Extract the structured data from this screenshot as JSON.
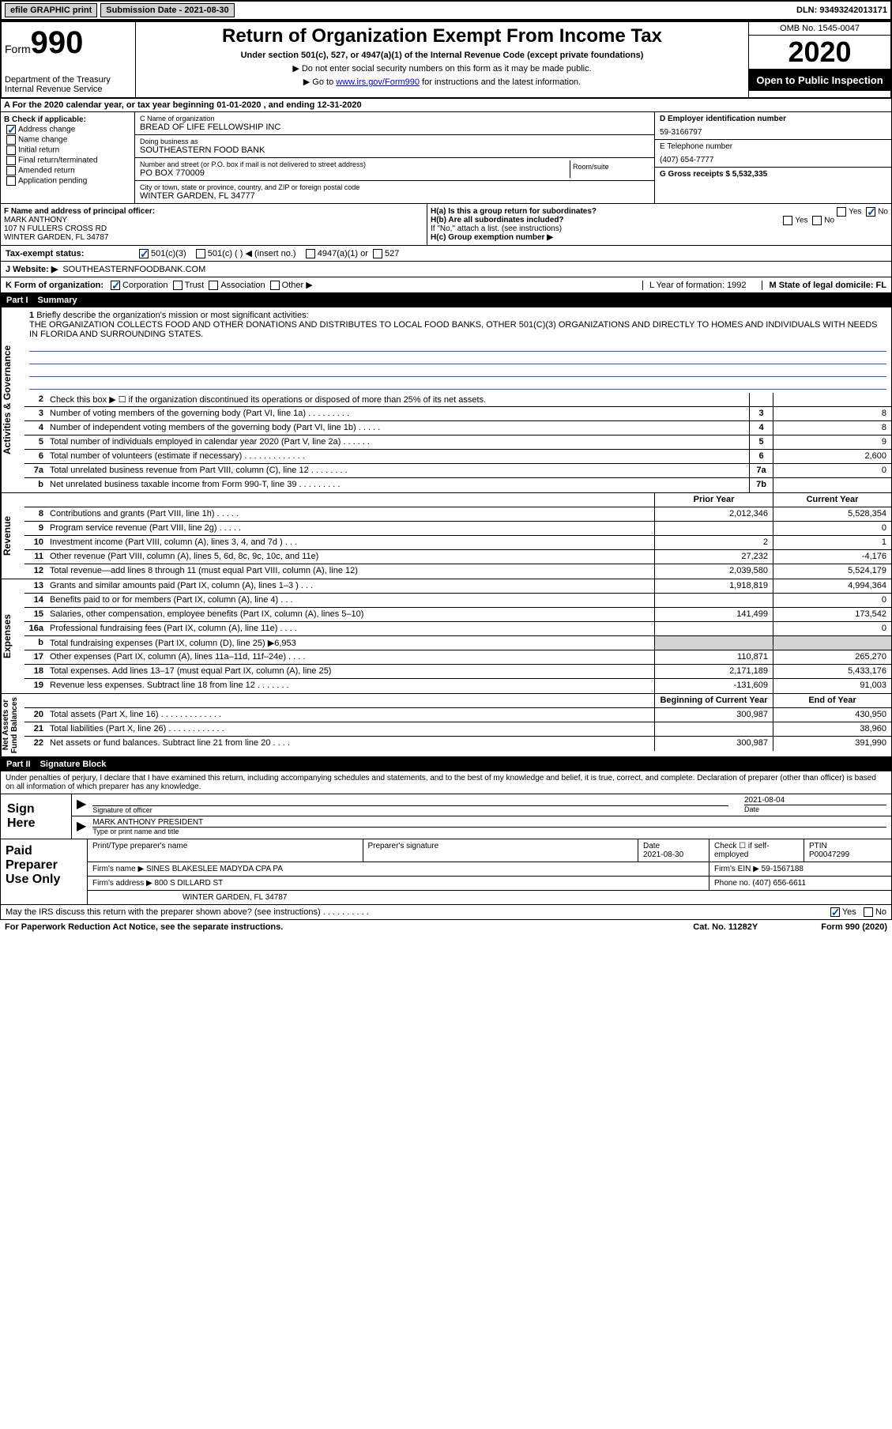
{
  "header": {
    "efile": "efile GRAPHIC print",
    "submission_label": "Submission Date - 2021-08-30",
    "dln": "DLN: 93493242013171"
  },
  "title_block": {
    "form": "Form",
    "form_num": "990",
    "title": "Return of Organization Exempt From Income Tax",
    "subtitle": "Under section 501(c), 527, or 4947(a)(1) of the Internal Revenue Code (except private foundations)",
    "note1": "▶ Do not enter social security numbers on this form as it may be made public.",
    "note2_pre": "▶ Go to ",
    "note2_link": "www.irs.gov/Form990",
    "note2_post": " for instructions and the latest information.",
    "dept": "Department of the Treasury\nInternal Revenue Service",
    "omb": "OMB No. 1545-0047",
    "year": "2020",
    "inspection": "Open to Public Inspection"
  },
  "row_a": "A For the 2020 calendar year, or tax year beginning 01-01-2020     , and ending 12-31-2020",
  "section_b": {
    "header": "B Check if applicable:",
    "address_change": "Address change",
    "name_change": "Name change",
    "initial_return": "Initial return",
    "final_return": "Final return/terminated",
    "amended_return": "Amended return",
    "application_pending": "Application pending"
  },
  "section_c": {
    "name_label": "C Name of organization",
    "name": "BREAD OF LIFE FELLOWSHIP INC",
    "dba_label": "Doing business as",
    "dba": "SOUTHEASTERN FOOD BANK",
    "addr_label": "Number and street (or P.O. box if mail is not delivered to street address)",
    "room_label": "Room/suite",
    "addr": "PO BOX 770009",
    "city_label": "City or town, state or province, country, and ZIP or foreign postal code",
    "city": "WINTER GARDEN, FL  34777"
  },
  "section_d": {
    "label": "D Employer identification number",
    "value": "59-3166797"
  },
  "section_e": {
    "label": "E Telephone number",
    "value": "(407) 654-7777"
  },
  "section_g": {
    "label": "G Gross receipts $ 5,532,335"
  },
  "section_f": {
    "label": "F  Name and address of principal officer:",
    "name": "MARK ANTHONY",
    "addr1": "107 N FULLERS CROSS RD",
    "addr2": "WINTER GARDEN, FL  34787"
  },
  "section_h": {
    "ha": "H(a)  Is this a group return for subordinates?",
    "ha_yes": "Yes",
    "ha_no": "No",
    "hb": "H(b)  Are all subordinates included?",
    "hb_yes": "Yes",
    "hb_no": "No",
    "hb_note": "If \"No,\" attach a list. (see instructions)",
    "hc": "H(c)  Group exemption number ▶"
  },
  "tax_exempt": {
    "label": "Tax-exempt status:",
    "c3": "501(c)(3)",
    "c": "501(c) (   ) ◀ (insert no.)",
    "a1": "4947(a)(1) or",
    "s527": "527"
  },
  "website": {
    "label": "J    Website: ▶",
    "value": "SOUTHEASTERNFOODBANK.COM"
  },
  "section_k": {
    "label": "K Form of organization:",
    "corp": "Corporation",
    "trust": "Trust",
    "assoc": "Association",
    "other": "Other ▶"
  },
  "section_l": {
    "label": "L Year of formation: 1992"
  },
  "section_m": {
    "label": "M State of legal domicile: FL"
  },
  "part1": {
    "num": "Part I",
    "title": "Summary"
  },
  "mission": {
    "num": "1",
    "label": "Briefly describe the organization's mission or most significant activities:",
    "text": "THE ORGANIZATION COLLECTS FOOD AND OTHER DONATIONS AND DISTRIBUTES TO LOCAL FOOD BANKS, OTHER 501(C)(3) ORGANIZATIONS AND DIRECTLY TO HOMES AND INDIVIDUALS WITH NEEDS IN FLORIDA AND SURROUNDING STATES."
  },
  "vtabs": {
    "ag": "Activities & Governance",
    "rev": "Revenue",
    "exp": "Expenses",
    "na": "Net Assets or\nFund Balances"
  },
  "lines_ag": [
    {
      "n": "2",
      "t": "Check this box ▶ ☐  if the organization discontinued its operations or disposed of more than 25% of its net assets.",
      "b": "",
      "v": ""
    },
    {
      "n": "3",
      "t": "Number of voting members of the governing body (Part VI, line 1a)   .    .    .    .    .    .    .    .    .",
      "b": "3",
      "v": "8"
    },
    {
      "n": "4",
      "t": "Number of independent voting members of the governing body (Part VI, line 1b)   .    .    .    .    .",
      "b": "4",
      "v": "8"
    },
    {
      "n": "5",
      "t": "Total number of individuals employed in calendar year 2020 (Part V, line 2a)   .    .    .    .    .    .",
      "b": "5",
      "v": "9"
    },
    {
      "n": "6",
      "t": "Total number of volunteers (estimate if necessary)     .    .    .    .    .    .    .    .    .    .    .    .    .",
      "b": "6",
      "v": "2,600"
    },
    {
      "n": "7a",
      "t": "Total unrelated business revenue from Part VIII, column (C), line 12   .    .    .    .    .    .    .    .",
      "b": "7a",
      "v": "0"
    },
    {
      "n": "b",
      "t": "Net unrelated business taxable income from Form 990-T, line 39    .    .    .    .    .    .    .    .    .",
      "b": "7b",
      "v": ""
    }
  ],
  "col_headers": {
    "prior": "Prior Year",
    "current": "Current Year"
  },
  "lines_rev": [
    {
      "n": "8",
      "t": "Contributions and grants (Part VIII, line 1h)    .    .    .    .    .",
      "py": "2,012,346",
      "cy": "5,528,354"
    },
    {
      "n": "9",
      "t": "Program service revenue (Part VIII, line 2g)    .    .    .    .    .",
      "py": "",
      "cy": "0"
    },
    {
      "n": "10",
      "t": "Investment income (Part VIII, column (A), lines 3, 4, and 7d )    .    .    .",
      "py": "2",
      "cy": "1"
    },
    {
      "n": "11",
      "t": "Other revenue (Part VIII, column (A), lines 5, 6d, 8c, 9c, 10c, and 11e)",
      "py": "27,232",
      "cy": "-4,176"
    },
    {
      "n": "12",
      "t": "Total revenue—add lines 8 through 11 (must equal Part VIII, column (A), line 12)",
      "py": "2,039,580",
      "cy": "5,524,179"
    }
  ],
  "lines_exp": [
    {
      "n": "13",
      "t": "Grants and similar amounts paid (Part IX, column (A), lines 1–3 )   .    .    .",
      "py": "1,918,819",
      "cy": "4,994,364"
    },
    {
      "n": "14",
      "t": "Benefits paid to or for members (Part IX, column (A), line 4)   .    .    .",
      "py": "",
      "cy": "0"
    },
    {
      "n": "15",
      "t": "Salaries, other compensation, employee benefits (Part IX, column (A), lines 5–10)",
      "py": "141,499",
      "cy": "173,542"
    },
    {
      "n": "16a",
      "t": "Professional fundraising fees (Part IX, column (A), line 11e)   .    .    .    .",
      "py": "",
      "cy": "0"
    },
    {
      "n": "b",
      "t": "Total fundraising expenses (Part IX, column (D), line 25) ▶6,953",
      "py": "SHADE",
      "cy": "SHADE"
    },
    {
      "n": "17",
      "t": "Other expenses (Part IX, column (A), lines 11a–11d, 11f–24e)   .    .    .    .",
      "py": "110,871",
      "cy": "265,270"
    },
    {
      "n": "18",
      "t": "Total expenses. Add lines 13–17 (must equal Part IX, column (A), line 25)",
      "py": "2,171,189",
      "cy": "5,433,176"
    },
    {
      "n": "19",
      "t": "Revenue less expenses. Subtract line 18 from line 12 .    .    .    .    .    .    .",
      "py": "-131,609",
      "cy": "91,003"
    }
  ],
  "col_headers2": {
    "begin": "Beginning of Current Year",
    "end": "End of Year"
  },
  "lines_na": [
    {
      "n": "20",
      "t": "Total assets (Part X, line 16)   .    .    .    .    .    .    .    .    .    .    .    .    .",
      "py": "300,987",
      "cy": "430,950"
    },
    {
      "n": "21",
      "t": "Total liabilities (Part X, line 26)   .    .    .    .    .    .    .    .    .    .    .    .",
      "py": "",
      "cy": "38,960"
    },
    {
      "n": "22",
      "t": "Net assets or fund balances. Subtract line 21 from line 20   .    .    .    .",
      "py": "300,987",
      "cy": "391,990"
    }
  ],
  "part2": {
    "num": "Part II",
    "title": "Signature Block"
  },
  "sig": {
    "declaration": "Under penalties of perjury, I declare that I have examined this return, including accompanying schedules and statements, and to the best of my knowledge and belief, it is true, correct, and complete. Declaration of preparer (other than officer) is based on all information of which preparer has any knowledge.",
    "sign_here": "Sign Here",
    "sig_officer": "Signature of officer",
    "date": "2021-08-04",
    "date_label": "Date",
    "name_title": "MARK ANTHONY PRESIDENT",
    "name_title_label": "Type or print name and title"
  },
  "prep": {
    "label": "Paid Preparer Use Only",
    "h1": "Print/Type preparer's name",
    "h2": "Preparer's signature",
    "h3": "Date",
    "h3v": "2021-08-30",
    "h4": "Check ☐ if self-employed",
    "h5": "PTIN",
    "h5v": "P00047299",
    "firm_label": "Firm's name     ▶",
    "firm": "SINES BLAKESLEE MADYDA CPA PA",
    "ein_label": "Firm's EIN ▶",
    "ein": "59-1567188",
    "addr_label": "Firm's address ▶",
    "addr1": "800 S DILLARD ST",
    "addr2": "WINTER GARDEN, FL  34787",
    "phone_label": "Phone no.",
    "phone": "(407) 656-6611"
  },
  "discuss": {
    "text": "May the IRS discuss this return with the preparer shown above? (see instructions)    .    .    .    .    .    .    .    .    .    .",
    "yes": "Yes",
    "no": "No"
  },
  "footer": {
    "left": "For Paperwork Reduction Act Notice, see the separate instructions.",
    "mid": "Cat. No. 11282Y",
    "right": "Form 990 (2020)"
  }
}
